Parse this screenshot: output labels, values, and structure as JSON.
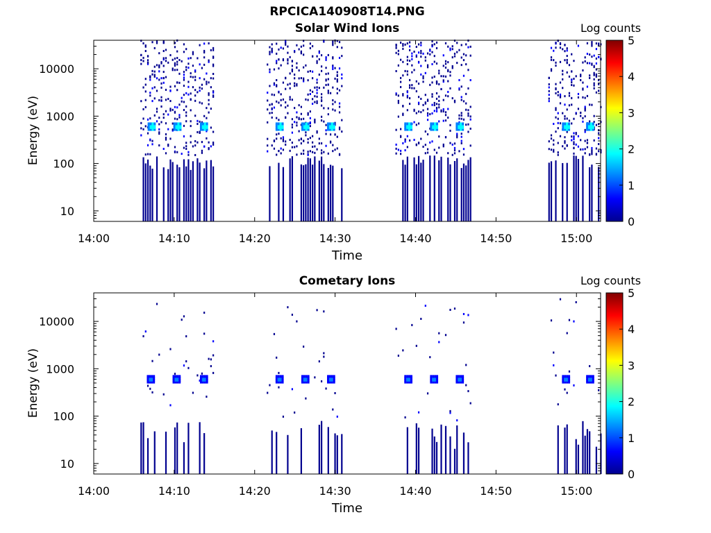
{
  "figure": {
    "title": "RPCICA140908T14.PNG"
  },
  "colors": {
    "palette": [
      "#00008f",
      "#0000ff",
      "#0080ff",
      "#00ffff",
      "#80ff80",
      "#ffff00",
      "#ff8000",
      "#ff0000",
      "#800000"
    ]
  },
  "chart_data": [
    {
      "type": "heatmap",
      "title": "Solar Wind Ions",
      "xlabel": "Time",
      "ylabel": "Energy (eV)",
      "x_ticks": [
        "14:00",
        "14:10",
        "14:20",
        "14:30",
        "14:40",
        "14:50",
        "15:00"
      ],
      "y_ticks": [
        "10",
        "100",
        "1000",
        "10000"
      ],
      "y_scale": "log",
      "ylim": [
        6,
        40000
      ],
      "xlim": [
        "14:00",
        "15:03"
      ],
      "colorbar": {
        "label": "Log counts",
        "ticks": [
          "0",
          "1",
          "2",
          "3",
          "4",
          "5"
        ],
        "range": [
          0,
          5
        ]
      },
      "scan_starts_min": [
        6,
        7.3,
        10.5,
        13.8,
        22,
        23,
        26,
        29.5,
        38,
        39,
        42.2,
        45.5,
        57,
        58.5,
        61.8
      ],
      "peak_energy_eV": 600,
      "peak_log_counts": 2.6,
      "peak_times_min": [
        7.1,
        10.3,
        13.6,
        23.0,
        26.2,
        29.4,
        39.0,
        42.2,
        45.4,
        58.6,
        61.6
      ]
    },
    {
      "type": "heatmap",
      "title": "Cometary Ions",
      "xlabel": "Time",
      "ylabel": "Energy (eV)",
      "x_ticks": [
        "14:00",
        "14:10",
        "14:20",
        "14:30",
        "14:40",
        "14:50",
        "15:00"
      ],
      "y_ticks": [
        "10",
        "100",
        "1000",
        "10000"
      ],
      "y_scale": "log",
      "ylim": [
        6,
        40000
      ],
      "xlim": [
        "14:00",
        "15:03"
      ],
      "colorbar": {
        "label": "Log counts",
        "ticks": [
          "0",
          "1",
          "2",
          "3",
          "4",
          "5"
        ],
        "range": [
          0,
          5
        ]
      },
      "peak_energy_eV": 600,
      "peak_log_counts": 1.4,
      "peak_times_min": [
        7.0,
        10.2,
        13.6,
        23.0,
        26.2,
        29.4,
        39.0,
        42.2,
        45.4,
        58.6,
        61.6
      ]
    }
  ]
}
